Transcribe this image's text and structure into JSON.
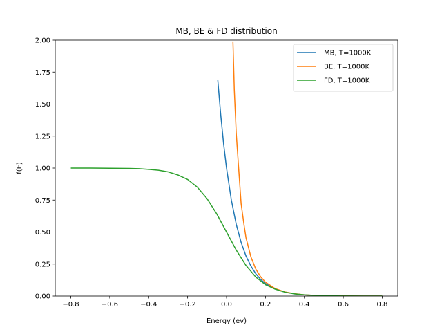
{
  "chart_data": {
    "type": "line",
    "title": "MB, BE & FD distribution",
    "xlabel": "Energy (ev)",
    "ylabel": "f(E)",
    "xlim": [
      -0.88,
      0.88
    ],
    "ylim": [
      0.0,
      2.0
    ],
    "x_ticks": [
      -0.8,
      -0.6,
      -0.4,
      -0.2,
      0.0,
      0.2,
      0.4,
      0.6,
      0.8
    ],
    "x_tick_labels": [
      "−0.8",
      "−0.6",
      "−0.4",
      "−0.2",
      "0.0",
      "0.2",
      "0.4",
      "0.6",
      "0.8"
    ],
    "y_ticks": [
      0.0,
      0.25,
      0.5,
      0.75,
      1.0,
      1.25,
      1.5,
      1.75,
      2.0
    ],
    "y_tick_labels": [
      "0.00",
      "0.25",
      "0.50",
      "0.75",
      "1.00",
      "1.25",
      "1.50",
      "1.75",
      "2.00"
    ],
    "grid": false,
    "legend_position": "top-right",
    "series": [
      {
        "name": "MB, T=1000K",
        "color": "#1f77b4",
        "x": [
          -0.045,
          -0.03,
          -0.015,
          0.0,
          0.025,
          0.05,
          0.075,
          0.1,
          0.125,
          0.15,
          0.175,
          0.2,
          0.25,
          0.3,
          0.35,
          0.4,
          0.45,
          0.5,
          0.6,
          0.7,
          0.8
        ],
        "y": [
          1.69,
          1.42,
          1.19,
          1.0,
          0.748,
          0.56,
          0.419,
          0.313,
          0.235,
          0.175,
          0.131,
          0.098,
          0.055,
          0.031,
          0.017,
          0.0097,
          0.0054,
          0.003,
          0.00095,
          0.0003,
          0.0001
        ]
      },
      {
        "name": "BE, T=1000K",
        "color": "#ff7f0e",
        "x": [
          0.033,
          0.04,
          0.05,
          0.06,
          0.075,
          0.09,
          0.1,
          0.125,
          0.15,
          0.175,
          0.2,
          0.25,
          0.3,
          0.35,
          0.4,
          0.45,
          0.5,
          0.6,
          0.7,
          0.8
        ],
        "y": [
          1.99,
          1.61,
          1.27,
          1.05,
          0.722,
          0.555,
          0.456,
          0.307,
          0.212,
          0.151,
          0.109,
          0.058,
          0.032,
          0.018,
          0.0098,
          0.0054,
          0.003,
          0.00095,
          0.0003,
          0.0001
        ]
      },
      {
        "name": "FD, T=1000K",
        "color": "#2ca02c",
        "x": [
          -0.8,
          -0.7,
          -0.6,
          -0.5,
          -0.45,
          -0.4,
          -0.35,
          -0.3,
          -0.25,
          -0.2,
          -0.15,
          -0.1,
          -0.05,
          0.0,
          0.05,
          0.1,
          0.15,
          0.2,
          0.25,
          0.3,
          0.35,
          0.4,
          0.45,
          0.5,
          0.6,
          0.7,
          0.8
        ],
        "y": [
          1.0,
          0.9997,
          0.999,
          0.997,
          0.995,
          0.99,
          0.983,
          0.97,
          0.946,
          0.911,
          0.851,
          0.761,
          0.641,
          0.5,
          0.359,
          0.239,
          0.149,
          0.089,
          0.054,
          0.03,
          0.017,
          0.0096,
          0.0054,
          0.003,
          0.00095,
          0.0003,
          0.0001
        ]
      }
    ]
  }
}
